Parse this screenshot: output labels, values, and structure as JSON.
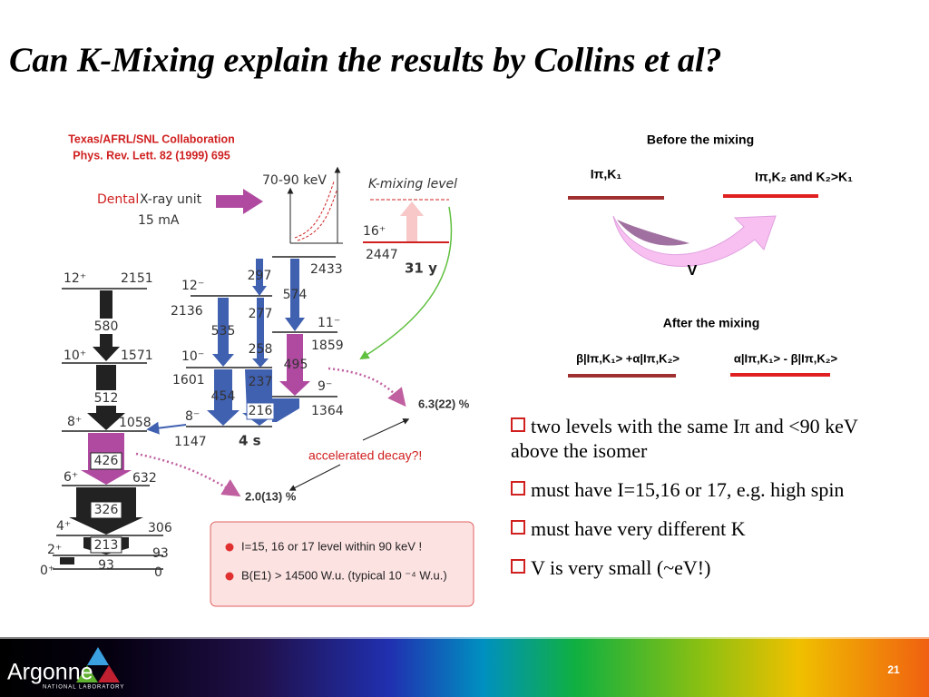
{
  "title": "Can K-Mixing explain the results by Collins et al?",
  "figure": {
    "collaboration": "Texas/AFRL/SNL Collaboration",
    "reference": "Phys. Rev. Lett. 82 (1999) 695",
    "source": [
      "Dental",
      "X-ray unit",
      "15 mA"
    ],
    "energy_range": "70-90 keV",
    "k_mixing_level": "K-mixing level",
    "isomer": [
      "16⁺",
      "2447",
      "31 y"
    ],
    "ground_band_levels": [
      [
        "12⁺",
        "2151"
      ],
      [
        "10⁺",
        "1571"
      ],
      [
        "8⁺",
        "1058"
      ],
      [
        "6⁺",
        "632"
      ],
      [
        "4⁺",
        "306"
      ],
      [
        "2⁺",
        "93"
      ],
      [
        "0⁺",
        "0"
      ]
    ],
    "ground_band_transitions": [
      "580",
      "512",
      "426",
      "326",
      "213",
      "93"
    ],
    "side_band_levels": [
      [
        "12⁻",
        "2136"
      ],
      [
        "10⁻",
        "1601"
      ],
      [
        "8⁻",
        "1147"
      ],
      [
        "11⁻",
        "1859"
      ],
      [
        "9⁻",
        "1364"
      ]
    ],
    "band_head_level": "2433",
    "side_band_transitions": [
      "297",
      "574",
      "277",
      "535",
      "258",
      "495",
      "237",
      "454",
      "216"
    ],
    "half_life_8minus": "4 s",
    "branching": [
      "6.3(22) %",
      "2.0(13) %"
    ],
    "question": "accelerated decay?!",
    "notes": [
      "I=15, 16 or 17 level within 90 keV !",
      "B(E1) > 14500 W.u. (typical 10 ⁻⁴ W.u.)"
    ]
  },
  "mixing": {
    "before_title": "Before the mixing",
    "before_levels": [
      "Iπ,K₁",
      "Iπ,K₂ and K₂>K₁"
    ],
    "coupling": "V",
    "after_title": "After the mixing",
    "after_levels": [
      "β|Iπ,K₁> +α|Iπ,K₂>",
      "α|Iπ,K₁> - β|Iπ,K₂>"
    ]
  },
  "bullets": [
    "two levels with the same Iπ and <90 keV above the isomer",
    "must have I=15,16 or 17, e.g. high spin",
    "must have very different K",
    "V is very small (~eV!)"
  ],
  "footer": {
    "logo": "Argonne",
    "logo_sub": "NATIONAL LABORATORY",
    "page": "21"
  }
}
